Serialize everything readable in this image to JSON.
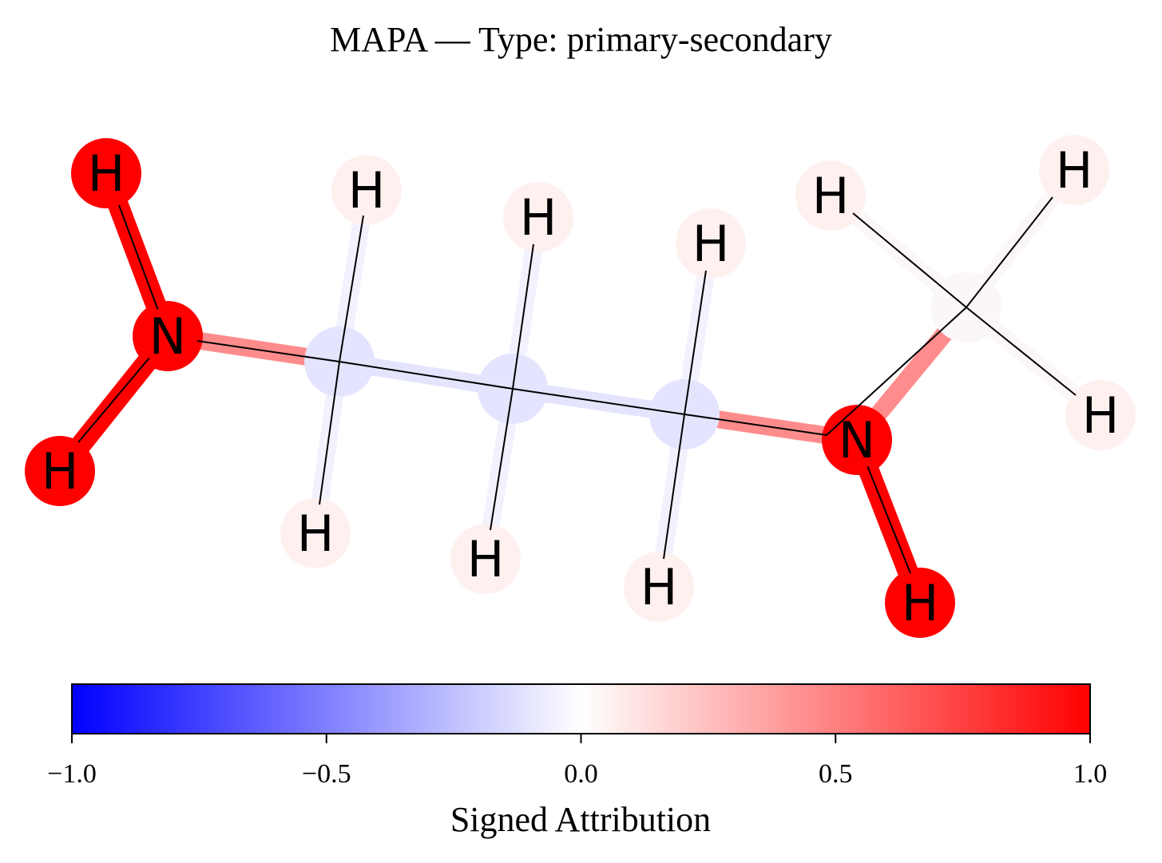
{
  "title": "MAPA — Type: primary-secondary",
  "colors": {
    "strong_red": "#ff0000",
    "mid_red": "#ff8c8c",
    "pale_red": "#fff0f0",
    "pale_blue": "#e4e4ff",
    "very_pale_blue": "#f2f2ff",
    "bond_line": "#000000",
    "colormap": [
      "#0000ff",
      "#ffffff",
      "#ff0000"
    ]
  },
  "molecule": {
    "atoms": [
      {
        "id": "N1",
        "symbol": "N",
        "attribution": 1.0
      },
      {
        "id": "H1",
        "symbol": "H",
        "attribution": 1.0
      },
      {
        "id": "H2",
        "symbol": "H",
        "attribution": 1.0
      },
      {
        "id": "C1",
        "symbol": "",
        "attribution": -0.12
      },
      {
        "id": "H3",
        "symbol": "H",
        "attribution": 0.05
      },
      {
        "id": "H4",
        "symbol": "H",
        "attribution": 0.05
      },
      {
        "id": "C2",
        "symbol": "",
        "attribution": -0.12
      },
      {
        "id": "H5",
        "symbol": "H",
        "attribution": 0.05
      },
      {
        "id": "H6",
        "symbol": "H",
        "attribution": 0.05
      },
      {
        "id": "C3",
        "symbol": "",
        "attribution": -0.12
      },
      {
        "id": "H7",
        "symbol": "H",
        "attribution": 0.05
      },
      {
        "id": "H8",
        "symbol": "H",
        "attribution": 0.05
      },
      {
        "id": "N2",
        "symbol": "N",
        "attribution": 1.0
      },
      {
        "id": "H9",
        "symbol": "H",
        "attribution": 1.0
      },
      {
        "id": "C4",
        "symbol": "",
        "attribution": 0.02
      },
      {
        "id": "H10",
        "symbol": "H",
        "attribution": 0.05
      },
      {
        "id": "H11",
        "symbol": "H",
        "attribution": 0.05
      },
      {
        "id": "H12",
        "symbol": "H",
        "attribution": 0.05
      }
    ],
    "bonds": [
      {
        "from": "N1",
        "to": "H1",
        "attribution": 1.0
      },
      {
        "from": "N1",
        "to": "H2",
        "attribution": 1.0
      },
      {
        "from": "N1",
        "to": "C1",
        "attribution": 0.45
      },
      {
        "from": "C1",
        "to": "H3",
        "attribution": -0.05
      },
      {
        "from": "C1",
        "to": "H4",
        "attribution": -0.05
      },
      {
        "from": "C1",
        "to": "C2",
        "attribution": -0.12
      },
      {
        "from": "C2",
        "to": "H5",
        "attribution": -0.05
      },
      {
        "from": "C2",
        "to": "H6",
        "attribution": -0.05
      },
      {
        "from": "C2",
        "to": "C3",
        "attribution": -0.12
      },
      {
        "from": "C3",
        "to": "H7",
        "attribution": -0.05
      },
      {
        "from": "C3",
        "to": "H8",
        "attribution": -0.05
      },
      {
        "from": "C3",
        "to": "N2",
        "attribution": 0.45
      },
      {
        "from": "N2",
        "to": "H9",
        "attribution": 1.0
      },
      {
        "from": "N2",
        "to": "C4",
        "attribution": 0.45
      },
      {
        "from": "C4",
        "to": "H10",
        "attribution": 0.02
      },
      {
        "from": "C4",
        "to": "H11",
        "attribution": 0.02
      },
      {
        "from": "C4",
        "to": "H12",
        "attribution": 0.02
      }
    ]
  },
  "colorbar": {
    "label": "Signed Attribution",
    "min": -1.0,
    "max": 1.0,
    "ticks": [
      {
        "value": -1.0,
        "label": "−1.0"
      },
      {
        "value": -0.5,
        "label": "−0.5"
      },
      {
        "value": 0.0,
        "label": "0.0"
      },
      {
        "value": 0.5,
        "label": "0.5"
      },
      {
        "value": 1.0,
        "label": "1.0"
      }
    ]
  }
}
